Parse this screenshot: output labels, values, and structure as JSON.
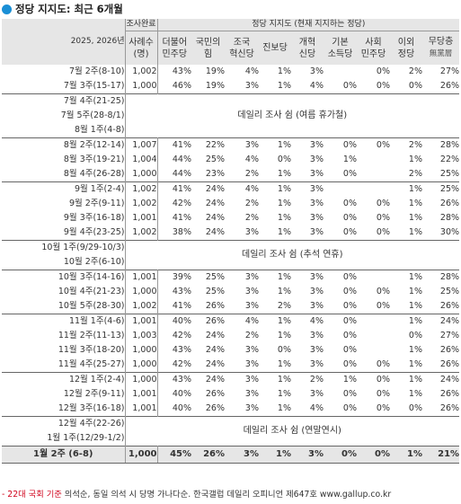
{
  "title": "정당 지지도: 최근 6개월",
  "header": {
    "survey_group": "조사완료",
    "period_label": "2025, 2026년",
    "n_label": [
      "사례수",
      "(명)"
    ],
    "party_group": "정당 지지도 (현재 지지하는 정당)",
    "parties": [
      [
        "더불어",
        "민주당"
      ],
      [
        "국민의",
        "힘"
      ],
      [
        "조국",
        "혁신당"
      ],
      [
        "진보당"
      ],
      [
        "개혁",
        "신당"
      ],
      [
        "기본",
        "소득당"
      ],
      [
        "사회",
        "민주당"
      ],
      [
        "이외",
        "정당"
      ],
      [
        "무당층",
        "無黨層"
      ]
    ]
  },
  "rows": [
    {
      "period": "7월 2주(8-10)",
      "n": "1,002",
      "v": [
        "43%",
        "19%",
        "4%",
        "1%",
        "3%",
        "",
        "0%",
        "2%",
        "27%"
      ]
    },
    {
      "period": "7월 3주(15-17)",
      "n": "1,000",
      "v": [
        "46%",
        "19%",
        "3%",
        "1%",
        "4%",
        "0%",
        "0%",
        "0%",
        "26%"
      ]
    },
    {
      "periods": [
        "7월 4주(21-25)",
        "7월 5주(28-8/1)",
        "8월 1주(4-8)"
      ],
      "note": "데일리 조사 쉼 (여름 휴가철)"
    },
    {
      "period": "8월 2주(12-14)",
      "n": "1,007",
      "v": [
        "41%",
        "22%",
        "3%",
        "1%",
        "3%",
        "0%",
        "0%",
        "2%",
        "28%"
      ],
      "sep": true
    },
    {
      "period": "8월 3주(19-21)",
      "n": "1,004",
      "v": [
        "44%",
        "25%",
        "4%",
        "0%",
        "3%",
        "1%",
        "",
        "1%",
        "22%"
      ]
    },
    {
      "period": "8월 4주(26-28)",
      "n": "1,000",
      "v": [
        "44%",
        "23%",
        "2%",
        "1%",
        "3%",
        "0%",
        "",
        "2%",
        "25%"
      ]
    },
    {
      "period": "9월 1주(2-4)",
      "n": "1,002",
      "v": [
        "41%",
        "24%",
        "4%",
        "1%",
        "3%",
        "",
        "",
        "1%",
        "25%"
      ],
      "sep": true
    },
    {
      "period": "9월 2주(9-11)",
      "n": "1,002",
      "v": [
        "42%",
        "24%",
        "2%",
        "1%",
        "3%",
        "0%",
        "0%",
        "1%",
        "26%"
      ]
    },
    {
      "period": "9월 3주(16-18)",
      "n": "1,001",
      "v": [
        "41%",
        "24%",
        "2%",
        "1%",
        "3%",
        "0%",
        "0%",
        "1%",
        "28%"
      ]
    },
    {
      "period": "9월 4주(23-25)",
      "n": "1,002",
      "v": [
        "38%",
        "24%",
        "3%",
        "1%",
        "3%",
        "0%",
        "0%",
        "1%",
        "30%"
      ]
    },
    {
      "periods": [
        "10월 1주(9/29-10/3)",
        "10월 2주(6-10)"
      ],
      "note": "데일리 조사 쉼 (추석 연휴)"
    },
    {
      "period": "10월 3주(14-16)",
      "n": "1,001",
      "v": [
        "39%",
        "25%",
        "3%",
        "1%",
        "3%",
        "0%",
        "",
        "1%",
        "28%"
      ],
      "sep": true
    },
    {
      "period": "10월 4주(21-23)",
      "n": "1,000",
      "v": [
        "43%",
        "25%",
        "3%",
        "1%",
        "3%",
        "0%",
        "0%",
        "1%",
        "25%"
      ]
    },
    {
      "period": "10월 5주(28-30)",
      "n": "1,002",
      "v": [
        "41%",
        "26%",
        "3%",
        "2%",
        "3%",
        "0%",
        "0%",
        "1%",
        "26%"
      ]
    },
    {
      "period": "11월 1주(4-6)",
      "n": "1,001",
      "v": [
        "40%",
        "26%",
        "4%",
        "1%",
        "4%",
        "0%",
        "",
        "1%",
        "24%"
      ],
      "sep": true
    },
    {
      "period": "11월 2주(11-13)",
      "n": "1,003",
      "v": [
        "42%",
        "24%",
        "2%",
        "1%",
        "3%",
        "0%",
        "",
        "0%",
        "27%"
      ]
    },
    {
      "period": "11월 3주(18-20)",
      "n": "1,000",
      "v": [
        "43%",
        "24%",
        "3%",
        "0%",
        "3%",
        "0%",
        "",
        "1%",
        "26%"
      ]
    },
    {
      "period": "11월 4주(25-27)",
      "n": "1,000",
      "v": [
        "42%",
        "24%",
        "3%",
        "1%",
        "3%",
        "0%",
        "0%",
        "1%",
        "26%"
      ]
    },
    {
      "period": "12월 1주(2-4)",
      "n": "1,000",
      "v": [
        "43%",
        "24%",
        "3%",
        "1%",
        "2%",
        "1%",
        "0%",
        "1%",
        "24%"
      ],
      "sep": true
    },
    {
      "period": "12월 2주(9-11)",
      "n": "1,001",
      "v": [
        "40%",
        "26%",
        "3%",
        "1%",
        "3%",
        "0%",
        "0%",
        "1%",
        "26%"
      ]
    },
    {
      "period": "12월 3주(16-18)",
      "n": "1,001",
      "v": [
        "40%",
        "26%",
        "3%",
        "1%",
        "4%",
        "0%",
        "0%",
        "0%",
        "26%"
      ]
    },
    {
      "periods": [
        "12월 4주(22-26)",
        "1월 1주(12/29-1/2)"
      ],
      "note": "데일리 조사 쉼 (연말연시)",
      "sep": true
    }
  ],
  "final_row": {
    "period": "1월 2주 (6-8)",
    "n": "1,000",
    "v": [
      "45%",
      "26%",
      "3%",
      "1%",
      "3%",
      "0%",
      "0%",
      "1%",
      "21%"
    ]
  },
  "footer": {
    "highlight": "- 22대 국회 기준",
    "text": " 의석순, 동일 의석 시 당명 가나다순. 한국갤럽 데일리 오피니언 제647호 www.gallup.co.kr"
  }
}
